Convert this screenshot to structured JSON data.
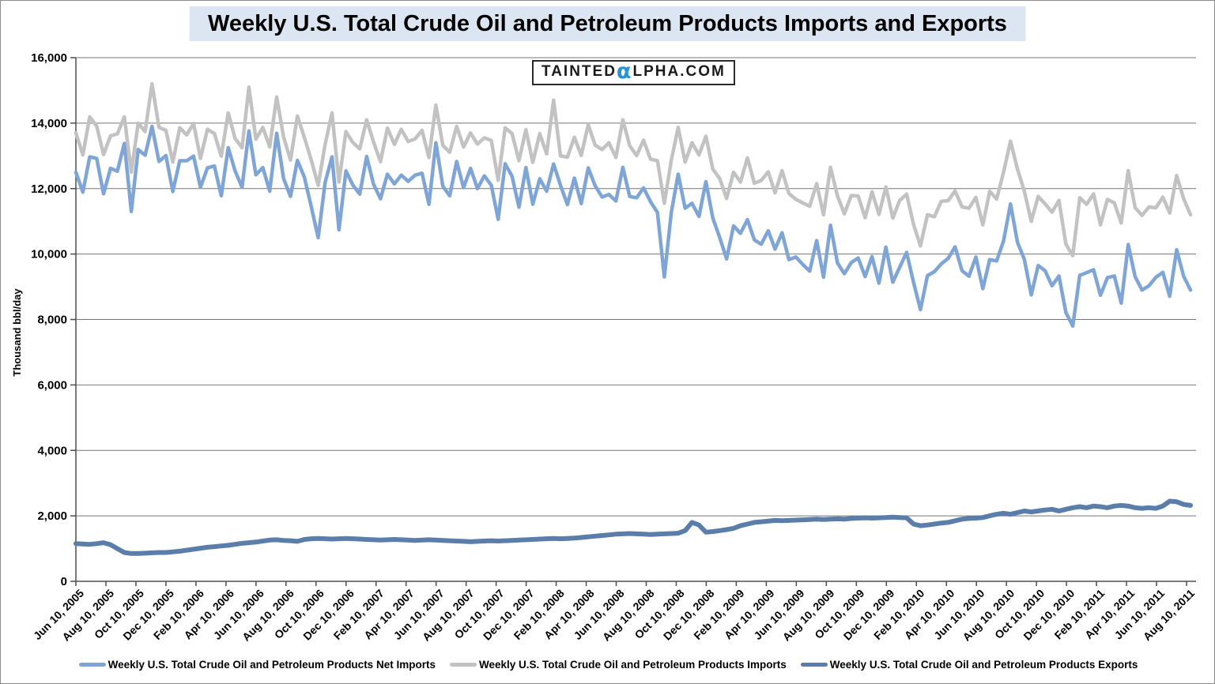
{
  "watermark": {
    "left": "TAINTED",
    "alpha": "α",
    "right": "LPHA.COM",
    "alpha_color": "#2793d6"
  },
  "chart_data": {
    "type": "line",
    "title": "Weekly U.S. Total Crude Oil and Petroleum Products Imports and Exports",
    "xlabel": "",
    "ylabel": "Thousand bbl/day",
    "ylim": [
      0,
      16000
    ],
    "ytick_step": 2000,
    "grid": true,
    "legend_position": "bottom",
    "colors": {
      "grid": "#757575",
      "axis": "#4d4d4d",
      "title_bg": "#dbe6f2"
    },
    "ytick_labels": [
      "0",
      "2,000",
      "4,000",
      "6,000",
      "8,000",
      "10,000",
      "12,000",
      "14,000",
      "16,000"
    ],
    "x_tick_labels": [
      "Jun 10, 2005",
      "Aug 10, 2005",
      "Oct 10, 2005",
      "Dec 10, 2005",
      "Feb 10, 2006",
      "Apr 10, 2006",
      "Jun 10, 2006",
      "Aug 10, 2006",
      "Oct 10, 2006",
      "Dec 10, 2006",
      "Feb 10, 2007",
      "Apr 10, 2007",
      "Jun 10, 2007",
      "Aug 10, 2007",
      "Oct 10, 2007",
      "Dec 10, 2007",
      "Feb 10, 2008",
      "Apr 10, 2008",
      "Jun 10, 2008",
      "Aug 10, 2008",
      "Oct 10, 2008",
      "Dec 10, 2008",
      "Feb 10, 2009",
      "Apr 10, 2009",
      "Jun 10, 2009",
      "Aug 10, 2009",
      "Oct 10, 2009",
      "Dec 10, 2009",
      "Feb 10, 2010",
      "Apr 10, 2010",
      "Jun 10, 2010",
      "Aug 10, 2010",
      "Oct 10, 2010",
      "Dec 10, 2010",
      "Feb 10, 2011",
      "Apr 10, 2011",
      "Jun 10, 2011",
      "Aug 10, 2011"
    ],
    "x_unit": "biweekly samples, Jun 10 2005 - Aug 2011",
    "series": [
      {
        "name": "Weekly U.S. Total Crude Oil and Petroleum Products Net Imports",
        "color": "#7fa5d6",
        "values": [
          12500,
          11890,
          12970,
          12920,
          11840,
          12620,
          12530,
          13380,
          11300,
          13190,
          13020,
          13900,
          12830,
          13010,
          11910,
          12850,
          12850,
          12990,
          12040,
          12630,
          12690,
          11780,
          13250,
          12540,
          12040,
          13760,
          12420,
          12640,
          11920,
          13690,
          12310,
          11760,
          12860,
          12350,
          11440,
          10500,
          12190,
          12970,
          10740,
          12540,
          12110,
          11830,
          12980,
          12130,
          11690,
          12440,
          12140,
          12410,
          12220,
          12410,
          12470,
          11520,
          13400,
          12070,
          11780,
          12830,
          12030,
          12620,
          12000,
          12390,
          12100,
          11060,
          12760,
          12380,
          11430,
          12640,
          11520,
          12300,
          11920,
          12750,
          12100,
          11510,
          12320,
          11540,
          12630,
          12090,
          11740,
          11820,
          11620,
          12650,
          11760,
          11720,
          12020,
          11600,
          11270,
          9300,
          11270,
          12440,
          11400,
          11550,
          11150,
          12210,
          11100,
          10500,
          9850,
          10860,
          10630,
          11050,
          10430,
          10300,
          10710,
          10150,
          10650,
          9830,
          9910,
          9680,
          9480,
          10410,
          9290,
          10880,
          9730,
          9400,
          9740,
          9880,
          9310,
          9920,
          9110,
          10210,
          9140,
          9600,
          10050,
          9130,
          8300,
          9340,
          9460,
          9700,
          9870,
          10220,
          9490,
          9320,
          9910,
          8940,
          9830,
          9790,
          10400,
          11530,
          10360,
          9840,
          8750,
          9650,
          9490,
          9030,
          9330,
          8210,
          7800,
          9350,
          9430,
          9520,
          8740,
          9280,
          9330,
          8500,
          10290,
          9310,
          8900,
          9030,
          9290,
          9440,
          8710,
          10130,
          9330,
          8900
        ]
      },
      {
        "name": "Weekly U.S. Total Crude Oil and Petroleum Products Imports",
        "color": "#c3c2c2",
        "values": [
          13700,
          13030,
          14190,
          13910,
          13040,
          13610,
          13670,
          14190,
          12500,
          14000,
          13740,
          15200,
          13870,
          13780,
          12810,
          13860,
          13640,
          13990,
          12920,
          13810,
          13680,
          12990,
          14310,
          13530,
          13250,
          15100,
          13510,
          13870,
          13270,
          14800,
          13580,
          12870,
          14220,
          13560,
          12870,
          12100,
          13350,
          14310,
          12200,
          13740,
          13410,
          13210,
          14100,
          13420,
          12820,
          13850,
          13350,
          13810,
          13440,
          13520,
          13780,
          12950,
          14550,
          13320,
          13110,
          13900,
          13270,
          13700,
          13360,
          13550,
          13470,
          12250,
          13860,
          13680,
          12850,
          13800,
          12800,
          13680,
          13060,
          14700,
          13000,
          12960,
          13570,
          13010,
          13950,
          13330,
          13190,
          13400,
          12950,
          14100,
          13310,
          13010,
          13480,
          12900,
          12850,
          11550,
          12860,
          13870,
          12810,
          13400,
          13030,
          13600,
          12600,
          12300,
          11700,
          12500,
          12200,
          12940,
          12160,
          12250,
          12510,
          11870,
          12550,
          11850,
          11670,
          11560,
          11460,
          12150,
          11200,
          12650,
          11780,
          11230,
          11790,
          11770,
          11110,
          11900,
          11210,
          12050,
          11100,
          11640,
          11830,
          10900,
          10250,
          11200,
          11140,
          11610,
          11630,
          11930,
          11440,
          11400,
          11730,
          10890,
          11920,
          11680,
          12500,
          13450,
          12600,
          11920,
          11000,
          11760,
          11530,
          11280,
          11640,
          10300,
          9950,
          11720,
          11520,
          11840,
          10890,
          11670,
          11560,
          10950,
          12550,
          11420,
          11180,
          11440,
          11410,
          11740,
          11250,
          12400,
          11700,
          11200
        ]
      },
      {
        "name": "Weekly U.S. Total Crude Oil and Petroleum Products Exports",
        "color": "#5a7da9",
        "values": [
          1150,
          1140,
          1130,
          1150,
          1180,
          1120,
          1000,
          880,
          850,
          850,
          860,
          870,
          880,
          880,
          900,
          920,
          950,
          980,
          1010,
          1040,
          1060,
          1080,
          1100,
          1130,
          1160,
          1180,
          1200,
          1230,
          1260,
          1270,
          1250,
          1240,
          1220,
          1280,
          1300,
          1310,
          1300,
          1290,
          1300,
          1310,
          1300,
          1290,
          1280,
          1270,
          1260,
          1270,
          1280,
          1270,
          1260,
          1250,
          1260,
          1270,
          1260,
          1250,
          1240,
          1230,
          1220,
          1210,
          1220,
          1230,
          1240,
          1230,
          1240,
          1250,
          1260,
          1270,
          1280,
          1290,
          1300,
          1310,
          1300,
          1310,
          1320,
          1340,
          1360,
          1380,
          1400,
          1420,
          1440,
          1450,
          1460,
          1450,
          1440,
          1430,
          1440,
          1450,
          1460,
          1470,
          1550,
          1800,
          1720,
          1500,
          1520,
          1550,
          1580,
          1620,
          1700,
          1750,
          1800,
          1820,
          1840,
          1860,
          1850,
          1860,
          1870,
          1880,
          1890,
          1900,
          1890,
          1900,
          1910,
          1900,
          1920,
          1930,
          1940,
          1930,
          1940,
          1950,
          1960,
          1950,
          1940,
          1750,
          1700,
          1720,
          1750,
          1780,
          1800,
          1850,
          1900,
          1920,
          1930,
          1950,
          2000,
          2050,
          2080,
          2050,
          2100,
          2150,
          2120,
          2150,
          2180,
          2200,
          2150,
          2200,
          2250,
          2280,
          2250,
          2300,
          2280,
          2250,
          2300,
          2320,
          2300,
          2250,
          2230,
          2250,
          2230,
          2300,
          2450,
          2430,
          2350,
          2320
        ]
      }
    ]
  }
}
